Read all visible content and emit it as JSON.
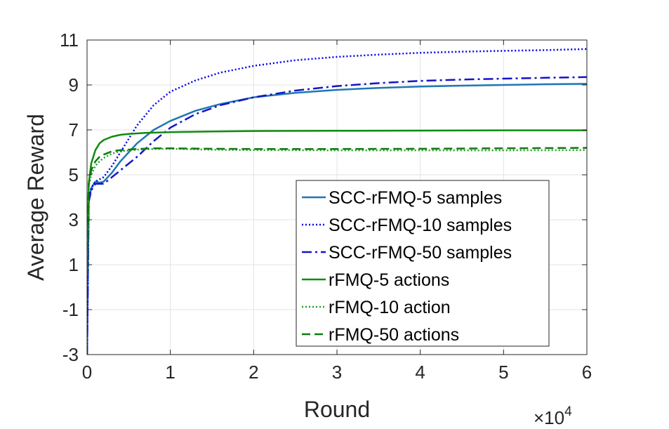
{
  "chart_data": {
    "type": "line",
    "title": "",
    "xlabel": "Round",
    "ylabel": "Average Reward",
    "x_multiplier_label": "×10",
    "x_multiplier_exponent": "4",
    "xlim": [
      0,
      6
    ],
    "ylim": [
      -3,
      11
    ],
    "xticks": [
      0,
      1,
      2,
      3,
      4,
      5,
      6
    ],
    "xtick_labels": [
      "0",
      "1",
      "2",
      "3",
      "4",
      "5",
      "6"
    ],
    "yticks": [
      -3,
      -1,
      1,
      3,
      5,
      7,
      9,
      11
    ],
    "ytick_labels": [
      "-3",
      "-1",
      "1",
      "3",
      "5",
      "7",
      "9",
      "11"
    ],
    "grid": true,
    "legend_position": "bottom-right",
    "series": [
      {
        "name": "SCC-rFMQ-5 samples",
        "color": "#1f77b4",
        "dash": "solid",
        "x": [
          0,
          0.02,
          0.05,
          0.08,
          0.1,
          0.15,
          0.2,
          0.3,
          0.4,
          0.5,
          0.6,
          0.8,
          1.0,
          1.3,
          1.6,
          2.0,
          2.5,
          3.0,
          3.5,
          4.0,
          4.5,
          5.0,
          5.5,
          6.0
        ],
        "y": [
          -3.0,
          3.8,
          4.4,
          4.6,
          4.7,
          4.65,
          4.7,
          5.1,
          5.6,
          6.0,
          6.4,
          7.0,
          7.4,
          7.85,
          8.15,
          8.45,
          8.65,
          8.78,
          8.87,
          8.93,
          8.97,
          9.0,
          9.03,
          9.05
        ]
      },
      {
        "name": "SCC-rFMQ-10 samples",
        "color": "#0000ee",
        "dash": "dotted",
        "x": [
          0,
          0.02,
          0.05,
          0.1,
          0.15,
          0.2,
          0.3,
          0.4,
          0.5,
          0.6,
          0.8,
          1.0,
          1.3,
          1.6,
          2.0,
          2.5,
          3.0,
          3.5,
          4.0,
          4.5,
          5.0,
          5.5,
          6.0
        ],
        "y": [
          -3.0,
          3.9,
          4.4,
          4.7,
          4.8,
          4.9,
          5.4,
          6.0,
          6.6,
          7.2,
          8.1,
          8.7,
          9.2,
          9.55,
          9.85,
          10.1,
          10.25,
          10.35,
          10.43,
          10.48,
          10.52,
          10.55,
          10.6
        ]
      },
      {
        "name": "SCC-rFMQ-50 samples",
        "color": "#1515c8",
        "dash": "dashdot",
        "x": [
          0,
          0.02,
          0.05,
          0.1,
          0.15,
          0.2,
          0.3,
          0.4,
          0.5,
          0.6,
          0.8,
          1.0,
          1.3,
          1.6,
          2.0,
          2.5,
          3.0,
          3.5,
          4.0,
          4.5,
          5.0,
          5.5,
          6.0
        ],
        "y": [
          -3.0,
          3.8,
          4.3,
          4.6,
          4.6,
          4.6,
          4.9,
          5.2,
          5.5,
          5.8,
          6.5,
          7.1,
          7.7,
          8.1,
          8.45,
          8.75,
          8.95,
          9.08,
          9.18,
          9.24,
          9.28,
          9.32,
          9.35
        ]
      },
      {
        "name": "rFMQ-5 actions",
        "color": "#108a10",
        "dash": "solid",
        "x": [
          0,
          0.02,
          0.05,
          0.1,
          0.15,
          0.2,
          0.3,
          0.4,
          0.5,
          0.7,
          1.0,
          1.5,
          2.0,
          3.0,
          4.0,
          5.0,
          6.0
        ],
        "y": [
          0.5,
          4.6,
          5.5,
          6.1,
          6.4,
          6.55,
          6.7,
          6.78,
          6.82,
          6.87,
          6.9,
          6.93,
          6.95,
          6.96,
          6.97,
          6.98,
          6.98
        ]
      },
      {
        "name": "rFMQ-10 action",
        "color": "#20a020",
        "dash": "dotted",
        "x": [
          0,
          0.02,
          0.05,
          0.1,
          0.15,
          0.2,
          0.3,
          0.4,
          0.6,
          0.8,
          1.0,
          1.5,
          2.0,
          3.0,
          4.0,
          5.0,
          6.0
        ],
        "y": [
          0.5,
          4.5,
          5.0,
          5.4,
          5.6,
          5.75,
          5.95,
          6.05,
          6.12,
          6.15,
          6.16,
          6.12,
          6.1,
          6.09,
          6.09,
          6.09,
          6.1
        ]
      },
      {
        "name": "rFMQ-50 actions",
        "color": "#0f7a0f",
        "dash": "dashed",
        "x": [
          0,
          0.02,
          0.05,
          0.1,
          0.15,
          0.2,
          0.3,
          0.4,
          0.6,
          0.8,
          1.0,
          1.5,
          2.0,
          3.0,
          4.0,
          5.0,
          6.0
        ],
        "y": [
          0.5,
          4.6,
          5.2,
          5.6,
          5.8,
          5.9,
          6.05,
          6.1,
          6.15,
          6.18,
          6.18,
          6.16,
          6.15,
          6.15,
          6.16,
          6.18,
          6.2
        ]
      }
    ]
  }
}
